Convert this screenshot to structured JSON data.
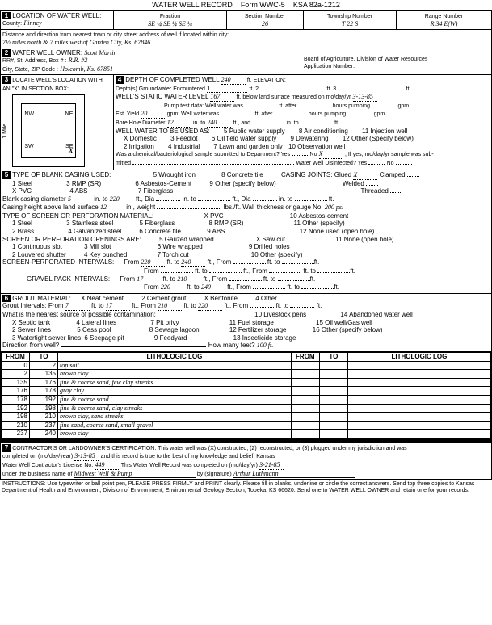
{
  "header": {
    "title": "WATER WELL RECORD",
    "form": "Form WWC-5",
    "ksa": "KSA 82a-1212"
  },
  "sec1": {
    "label": "LOCATION OF WATER WELL:",
    "county_label": "County:",
    "county": "Finney",
    "fraction_label": "Fraction",
    "fraction": "SE  ¼   SE  ¼   SE  ¼",
    "section_label": "Section Number",
    "section": "26",
    "township_label": "Township Number",
    "township": "T   22   S",
    "range_label": "Range Number",
    "range": "R   34   E(W)",
    "dist_label": "Distance and direction from nearest town or city street address of well if located within city:",
    "dist": "7½ miles north & 7 miles west of Garden City, Ks.  67846"
  },
  "sec2": {
    "label": "WATER WELL OWNER:",
    "owner": "Scott Martin",
    "rr_label": "RR#, St. Address, Box #   :",
    "rr": "R.R. #2",
    "city_label": "City, State, ZIP Code      :",
    "city": "Holcomb, Ks.   67851",
    "board": "Board of Agriculture, Division of Water Resources",
    "app_label": "Application Number:"
  },
  "sec3": {
    "label": "LOCATE WELL'S LOCATION WITH AN \"X\" IN SECTION BOX:",
    "mile": "1 Mile",
    "nw": "NW",
    "ne": "NE",
    "sw": "SW",
    "se": "SE"
  },
  "sec4": {
    "label": "DEPTH OF COMPLETED WELL",
    "depth": "240",
    "ft_elev": "ft. ELEVATION:",
    "depths_gw": "Depth(s) Groundwater Encountered",
    "gw1": "1",
    "gw2": "ft. 2",
    "gw3": "ft. 3.",
    "gwft": "ft.",
    "static_label": "WELL'S STATIC WATER LEVEL",
    "static": "167",
    "static_rest": "ft. below land surface measured on mo/day/yr",
    "static_date": "3-13-85",
    "pump_label": "Pump test data:  Well water was",
    "after1": "ft. after",
    "hrs1": "hours pumping",
    "gpm1": "gpm",
    "yield_label": "Est. Yield",
    "yield": "20",
    "gpm": "gpm:  Well water was",
    "after2": "ft. after",
    "hrs2": "hours pumping",
    "gpm2": "gpm",
    "bore_label": "Bore Hole Diameter",
    "bore": "12",
    "into": "in. to",
    "bore_to": "240",
    "ftand": "ft., and",
    "into2": "in. to",
    "ft": "ft.",
    "use_label": "WELL WATER TO BE USED AS:",
    "u_dom": "X Domestic",
    "u_irr": "2 Irrigation",
    "u_feed": "3 Feedlot",
    "u_ind": "4 Industrial",
    "u_pub": "5 Public water supply",
    "u_oil": "6 Oil field water supply",
    "u_lawn": "7 Lawn and garden only",
    "u_air": "8 Air conditioning",
    "u_dew": "9 Dewatering",
    "u_obs": "10 Observation well",
    "u_inj": "11 Injection well",
    "u_oth": "12 Other (Specify below)",
    "chem": "Was a chemical/bacteriological sample submitted to Department? Yes",
    "no": "No",
    "x": "X",
    "ifyes": "; If yes, mo/day/yr sample was sub-",
    "mitted": "mitted",
    "disinfect": "Water Well Disinfected? Yes",
    "nox": "No"
  },
  "sec5": {
    "label": "TYPE OF BLANK CASING USED:",
    "c1": "1 Steel",
    "c2": "X PVC",
    "c3": "3 RMP (SR)",
    "c4": "4 ABS",
    "c5": "5 Wrought iron",
    "c6": "6 Asbestos-Cement",
    "c7": "7 Fiberglass",
    "c8": "8 Concrete tile",
    "c9": "9 Other (specify below)",
    "joints": "CASING JOINTS: Glued",
    "x": "X",
    "clamped": "Clamped",
    "welded": "Welded",
    "threaded": "Threaded",
    "blank": "Blank casing diameter",
    "bd1": "5",
    "into": "in. to",
    "bd2": "220",
    "ftdia": "ft., Dia",
    "into2": "in. to",
    "ftdia2": "ft., Dia",
    "into3": "in. to",
    "ft": "ft.",
    "height": "Casing height above land surface",
    "h": "12",
    "inwt": "in., weight",
    "lbs": "lbs./ft. Wall thickness or gauge No.",
    "gauge": "200 psi",
    "screen_label": "TYPE OF SCREEN OR PERFORATION MATERIAL:",
    "s1": "1 Steel",
    "s2": "2 Brass",
    "s3": "3 Stainless steel",
    "s4": "4 Galvanized steel",
    "s5": "5 Fiberglass",
    "s6": "6 Concrete tile",
    "s7": "X PVC",
    "s8": "8 RMP (SR)",
    "s9": "9 ABS",
    "s10": "10 Asbestos-cement",
    "s11": "11 Other (specify)",
    "s12": "12 None used (open hole)",
    "open_label": "SCREEN OR PERFORATION OPENINGS ARE:",
    "o1": "1 Continuous slot",
    "o2": "2 Louvered shutter",
    "o3": "3 Mill slot",
    "o4": "4 Key punched",
    "o5": "5 Gauzed wrapped",
    "o6": "6 Wire wrapped",
    "o7": "7 Torch cut",
    "o8": "X Saw cut",
    "o9": "9 Drilled holes",
    "o10": "10 Other (specify)",
    "o11": "11 None (open hole)",
    "sp_label": "SCREEN-PERFORATED INTERVALS:",
    "from": "From",
    "to": "ft. to",
    "ftfrom": "ft., From",
    "spf1": "220",
    "spt1": "240",
    "gp_label": "GRAVEL PACK INTERVALS:",
    "gpf1": "17",
    "gpt1": "210",
    "gpf2": "220",
    "gpt2": "240"
  },
  "sec6": {
    "label": "GROUT MATERIAL:",
    "g1": "X Neat cement",
    "g2": "2 Cement grout",
    "g3": "X Bentonite",
    "g4": "4 Other",
    "gi": "Grout Intervals:   From",
    "gf1": "7",
    "gto": "ft. to",
    "gt1": "17",
    "gfrom": "ft., From",
    "gf2": "210",
    "gt2": "220",
    "gend": "ft.",
    "contam": "What is the nearest source of possible contamination:",
    "c1": "X Septic tank",
    "c2": "2 Sewer lines",
    "c3": "3 Watertight sewer lines",
    "c4": "4 Lateral lines",
    "c5": "5 Cess pool",
    "c6": "6 Seepage pit",
    "c7": "7 Pit privy",
    "c8": "8 Sewage lagoon",
    "c9": "9 Feedyard",
    "c10": "10 Livestock pens",
    "c11": "11 Fuel storage",
    "c12": "12 Fertilizer storage",
    "c13": "13 Insecticide storage",
    "c14": "14 Abandoned water well",
    "c15": "15 Oil well/Gas well",
    "c16": "16 Other (specify below)",
    "dir": "Direction from well?",
    "how": "How many feet?",
    "howv": "100 ft."
  },
  "litho": {
    "headers": [
      "FROM",
      "TO",
      "LITHOLOGIC LOG",
      "FROM",
      "TO",
      "LITHOLOGIC LOG"
    ],
    "rows": [
      [
        "0",
        "2",
        "top soil",
        "",
        "",
        ""
      ],
      [
        "2",
        "135",
        "brown clay",
        "",
        "",
        ""
      ],
      [
        "135",
        "176",
        "fine & coarse sand, few clay streaks",
        "",
        "",
        ""
      ],
      [
        "176",
        "178",
        "gray clay",
        "",
        "",
        ""
      ],
      [
        "178",
        "192",
        "fine & coarse sand",
        "",
        "",
        ""
      ],
      [
        "192",
        "198",
        "fine & coarse sand, clay streaks",
        "",
        "",
        ""
      ],
      [
        "198",
        "210",
        "brown clay, sand streaks",
        "",
        "",
        ""
      ],
      [
        "210",
        "237",
        "fine sand, coarse sand, small gravel",
        "",
        "",
        ""
      ],
      [
        "237",
        "240",
        "brown clay",
        "",
        "",
        ""
      ],
      [
        "",
        "",
        "",
        "",
        "",
        ""
      ],
      [
        "",
        "",
        "",
        "",
        "",
        ""
      ],
      [
        "",
        "",
        "",
        "",
        "",
        ""
      ],
      [
        "",
        "",
        "",
        "",
        "",
        ""
      ],
      [
        "",
        "",
        "",
        "",
        "",
        ""
      ],
      [
        "",
        "",
        "",
        "",
        "",
        ""
      ]
    ]
  },
  "sec7": {
    "label": "CONTRACTOR'S OR LANDOWNER'S CERTIFICATION: This water well was (X) constructed, (2) reconstructed, or (3) plugged under my jurisdiction and was",
    "completed": "completed on (mo/day/year)",
    "cdate": "3-13-85",
    "rest": "and this record is true to the best of my knowledge and belief. Kansas",
    "lic": "Water Well Contractor's License No.",
    "licno": "449",
    "rec": "This Water Well Record was completed on (mo/day/yr)",
    "rdate": "3-21-85",
    "bus": "under the business name of",
    "busname": "Midwest Well & Pump",
    "sig": "by (signature)",
    "sigval": "Arthur Luthmann",
    "instr": "INSTRUCTIONS: Use typewriter or ball point pen, PLEASE PRESS  FIRMLY and PRINT clearly. Please fill in blanks, underline or circle the correct answers. Send top three copies to Kansas Department of Health and Environment, Division of Environment, Environmental Geology Section, Topeka, KS 66620. Send one to WATER WELL OWNER and retain one for your records."
  }
}
